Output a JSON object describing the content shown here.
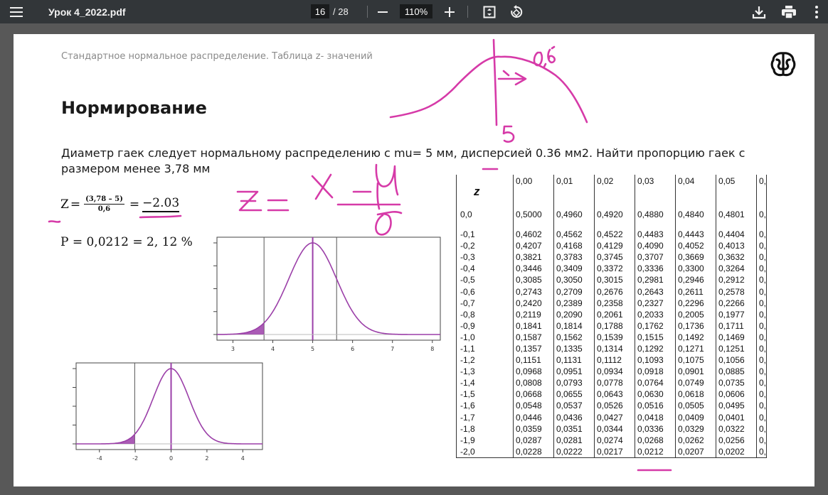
{
  "toolbar": {
    "title": "Урок 4_2022.pdf",
    "page_current": "16",
    "page_total": "/ 28",
    "zoom": "110%",
    "icons": [
      "menu-icon",
      "zoom-out-icon",
      "zoom-in-icon",
      "fit-page-icon",
      "rotate-icon",
      "download-icon",
      "print-icon",
      "more-vert-icon"
    ]
  },
  "slide": {
    "subtitle": "Стандартное нормальное распределение.  Таблица z- значений",
    "heading": "Нормирование",
    "problem": "Диаметр гаек следует нормальному распределению с mu= 5 мм, дисперсией 0.36 мм2. Найти  пропорцию гаек с размером менее 3,78 мм",
    "formula": {
      "z": "Z",
      "eq": "=",
      "num": "(3,78 – 5)",
      "den": "0,6",
      "eq2": "=",
      "result": "−2.03"
    },
    "probability": "P  =  0,0212 =  2, 12 %"
  },
  "handwriting": {
    "sd": "0,6",
    "mean": "5",
    "formula": "Z = (X − μ) / σ",
    "color": "#d63aa8"
  },
  "table": {
    "header": [
      "z",
      "0,00",
      "0,01",
      "0,02",
      "0,03",
      "0,04",
      "0,05",
      "0,"
    ],
    "rows": [
      [
        "0,0",
        "0,5000",
        "0,4960",
        "0,4920",
        "0,4880",
        "0,4840",
        "0,4801",
        "0,"
      ],
      [
        "-0,1",
        "0,4602",
        "0,4562",
        "0,4522",
        "0,4483",
        "0,4443",
        "0,4404",
        "0,"
      ],
      [
        "-0,2",
        "0,4207",
        "0,4168",
        "0,4129",
        "0,4090",
        "0,4052",
        "0,4013",
        "0,"
      ],
      [
        "-0,3",
        "0,3821",
        "0,3783",
        "0,3745",
        "0,3707",
        "0,3669",
        "0,3632",
        "0,"
      ],
      [
        "-0,4",
        "0,3446",
        "0,3409",
        "0,3372",
        "0,3336",
        "0,3300",
        "0,3264",
        "0,"
      ],
      [
        "-0,5",
        "0,3085",
        "0,3050",
        "0,3015",
        "0,2981",
        "0,2946",
        "0,2912",
        "0,"
      ],
      [
        "-0,6",
        "0,2743",
        "0,2709",
        "0,2676",
        "0,2643",
        "0,2611",
        "0,2578",
        "0,"
      ],
      [
        "-0,7",
        "0,2420",
        "0,2389",
        "0,2358",
        "0,2327",
        "0,2296",
        "0,2266",
        "0,"
      ],
      [
        "-0,8",
        "0,2119",
        "0,2090",
        "0,2061",
        "0,2033",
        "0,2005",
        "0,1977",
        "0,"
      ],
      [
        "-0,9",
        "0,1841",
        "0,1814",
        "0,1788",
        "0,1762",
        "0,1736",
        "0,1711",
        "0,"
      ],
      [
        "-1,0",
        "0,1587",
        "0,1562",
        "0,1539",
        "0,1515",
        "0,1492",
        "0,1469",
        "0,"
      ],
      [
        "-1,1",
        "0,1357",
        "0,1335",
        "0,1314",
        "0,1292",
        "0,1271",
        "0,1251",
        "0,"
      ],
      [
        "-1,2",
        "0,1151",
        "0,1131",
        "0,1112",
        "0,1093",
        "0,1075",
        "0,1056",
        "0,"
      ],
      [
        "-1,3",
        "0,0968",
        "0,0951",
        "0,0934",
        "0,0918",
        "0,0901",
        "0,0885",
        "0,"
      ],
      [
        "-1,4",
        "0,0808",
        "0,0793",
        "0,0778",
        "0,0764",
        "0,0749",
        "0,0735",
        "0,"
      ],
      [
        "-1,5",
        "0,0668",
        "0,0655",
        "0,0643",
        "0,0630",
        "0,0618",
        "0,0606",
        "0,"
      ],
      [
        "-1,6",
        "0,0548",
        "0,0537",
        "0,0526",
        "0,0516",
        "0,0505",
        "0,0495",
        "0,"
      ],
      [
        "-1,7",
        "0,0446",
        "0,0436",
        "0,0427",
        "0,0418",
        "0,0409",
        "0,0401",
        "0,"
      ],
      [
        "-1,8",
        "0,0359",
        "0,0351",
        "0,0344",
        "0,0336",
        "0,0329",
        "0,0322",
        "0,"
      ],
      [
        "-1,9",
        "0,0287",
        "0,0281",
        "0,0274",
        "0,0268",
        "0,0262",
        "0,0256",
        "0,"
      ],
      [
        "-2,0",
        "0,0228",
        "0,0222",
        "0,0217",
        "0,0212",
        "0,0207",
        "0,0202",
        "0,"
      ]
    ],
    "highlight_row": 20,
    "highlight_col": 4
  },
  "chart_data": [
    {
      "type": "line",
      "series": [
        {
          "values_desc": "normal density",
          "mean": 5,
          "sd": 0.6
        }
      ],
      "xlim": [
        2.6,
        8.2
      ],
      "ticks": [
        "3",
        "4",
        "5",
        "6",
        "7",
        "8"
      ],
      "tick_values": [
        3,
        4,
        5,
        6,
        7,
        8
      ],
      "vlines": [
        3.78,
        5,
        5.6
      ],
      "shaded_below": 3.78,
      "color": "#9b3fa8"
    },
    {
      "type": "line",
      "series": [
        {
          "values_desc": "standard normal density",
          "mean": 0,
          "sd": 1
        }
      ],
      "xlim": [
        -5.3,
        5.1
      ],
      "ticks": [
        "-4",
        "-2",
        "0",
        "2",
        "4"
      ],
      "tick_values": [
        -4,
        -2,
        0,
        2,
        4
      ],
      "vlines": [
        -2.03,
        0
      ],
      "shaded_below": -2.03,
      "color": "#9b3fa8"
    }
  ]
}
